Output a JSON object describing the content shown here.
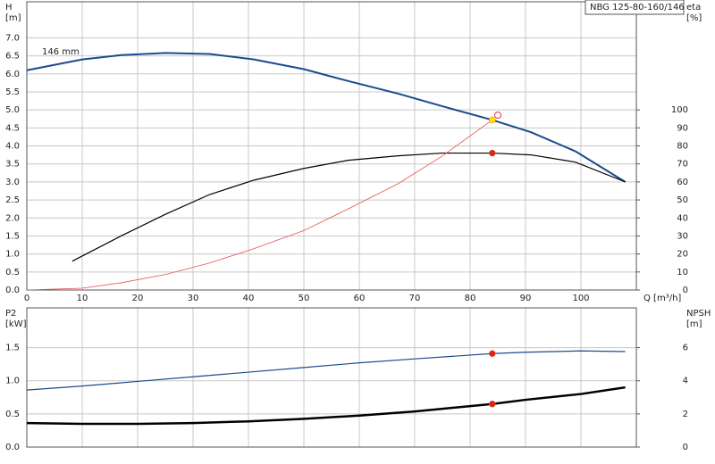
{
  "chart_data": [
    {
      "type": "line",
      "title": "NBG 125-80-160/146",
      "x_label": "Q [m³/h]",
      "y_label": [
        "H",
        "[m]"
      ],
      "y2_label": [
        "eta",
        "[%]"
      ],
      "annotation": "146 mm",
      "xlim": [
        0,
        110
      ],
      "xticks": [
        0,
        10,
        20,
        30,
        40,
        50,
        60,
        70,
        80,
        90,
        100
      ],
      "ylim": [
        0,
        8
      ],
      "yticks": [
        {
          "value": 0,
          "label": "0.0"
        },
        {
          "value": 0.5,
          "label": "0.5"
        },
        {
          "value": 1,
          "label": "1.0"
        },
        {
          "value": 1.5,
          "label": "1.5"
        },
        {
          "value": 2,
          "label": "2.0"
        },
        {
          "value": 2.5,
          "label": "2.5"
        },
        {
          "value": 3,
          "label": "3.0"
        },
        {
          "value": 3.5,
          "label": "3.5"
        },
        {
          "value": 4,
          "label": "4.0"
        },
        {
          "value": 4.5,
          "label": "4.5"
        },
        {
          "value": 5,
          "label": "5.0"
        },
        {
          "value": 5.5,
          "label": "5.5"
        },
        {
          "value": 6,
          "label": "6.0"
        },
        {
          "value": 6.5,
          "label": "6.5"
        },
        {
          "value": 7,
          "label": "7.0"
        }
      ],
      "y2lim": [
        0,
        160
      ],
      "y2ticks": [
        0,
        10,
        20,
        30,
        40,
        50,
        60,
        70,
        80,
        90,
        100
      ],
      "xtick_labels": true,
      "grid": true,
      "series": [
        {
          "color": "#1b4b8c",
          "width": 2,
          "x": [
            0,
            10,
            17,
            25,
            33,
            41,
            50,
            58,
            67,
            75,
            84,
            91,
            99,
            108
          ],
          "values": [
            6.1,
            6.4,
            6.52,
            6.58,
            6.55,
            6.4,
            6.13,
            5.8,
            5.45,
            5.1,
            4.72,
            4.38,
            3.85,
            3.0
          ]
        },
        {
          "color": "#000000",
          "width": 1.2,
          "axis": "y2",
          "x": [
            8.2,
            17,
            25,
            33,
            41,
            50,
            58,
            67,
            75,
            84,
            91,
            99,
            108
          ],
          "values": [
            16,
            30,
            42,
            53,
            61,
            67.5,
            72,
            74.5,
            76,
            76,
            75,
            71,
            60
          ]
        },
        {
          "color": "#e85050",
          "width": 0.8,
          "x": [
            0,
            10,
            17,
            25,
            33,
            41,
            50,
            58,
            67,
            75,
            84
          ],
          "values": [
            0,
            0.05,
            0.2,
            0.43,
            0.75,
            1.15,
            1.65,
            2.25,
            2.95,
            3.72,
            4.72
          ]
        }
      ],
      "markers": [
        {
          "x": 84,
          "y": 4.72,
          "color": "#ffe000",
          "filled": true
        },
        {
          "x": 85,
          "y": 4.85,
          "color": "#e33333",
          "filled": false
        },
        {
          "x": 84,
          "y": 76,
          "axis": "y2",
          "color": "#e02020",
          "filled": true
        }
      ]
    },
    {
      "type": "line",
      "y_label": [
        "P2",
        "[kW]"
      ],
      "y2_label": [
        "NPSH",
        "[m]"
      ],
      "xlim": [
        0,
        110
      ],
      "xticks": [
        0,
        10,
        20,
        30,
        40,
        50,
        60,
        70,
        80,
        90,
        100
      ],
      "ylim": [
        0,
        2.1
      ],
      "yticks": [
        {
          "value": 0,
          "label": "0.0"
        },
        {
          "value": 0.5,
          "label": "0.5"
        },
        {
          "value": 1,
          "label": "1.0"
        },
        {
          "value": 1.5,
          "label": "1.5"
        }
      ],
      "y2lim": [
        0,
        8.4
      ],
      "y2ticks": [
        0,
        2,
        4,
        6
      ],
      "xtick_labels": false,
      "grid": true,
      "series": [
        {
          "color": "#1b4b8c",
          "width": 1.2,
          "x": [
            0,
            10,
            20,
            30,
            40,
            50,
            60,
            70,
            84,
            90,
            100,
            108
          ],
          "values": [
            0.86,
            0.92,
            0.99,
            1.06,
            1.13,
            1.2,
            1.27,
            1.33,
            1.41,
            1.43,
            1.45,
            1.44
          ]
        },
        {
          "color": "#000000",
          "width": 2.5,
          "axis": "y2",
          "x": [
            0,
            10,
            20,
            30,
            40,
            50,
            60,
            70,
            84,
            90,
            100,
            108
          ],
          "values": [
            1.45,
            1.4,
            1.4,
            1.45,
            1.55,
            1.7,
            1.9,
            2.15,
            2.6,
            2.85,
            3.2,
            3.6
          ]
        }
      ],
      "markers": [
        {
          "x": 84,
          "y": 1.41,
          "color": "#e02020",
          "filled": true
        },
        {
          "x": 84,
          "y": 2.6,
          "axis": "y2",
          "color": "#e02020",
          "filled": true
        }
      ]
    }
  ]
}
